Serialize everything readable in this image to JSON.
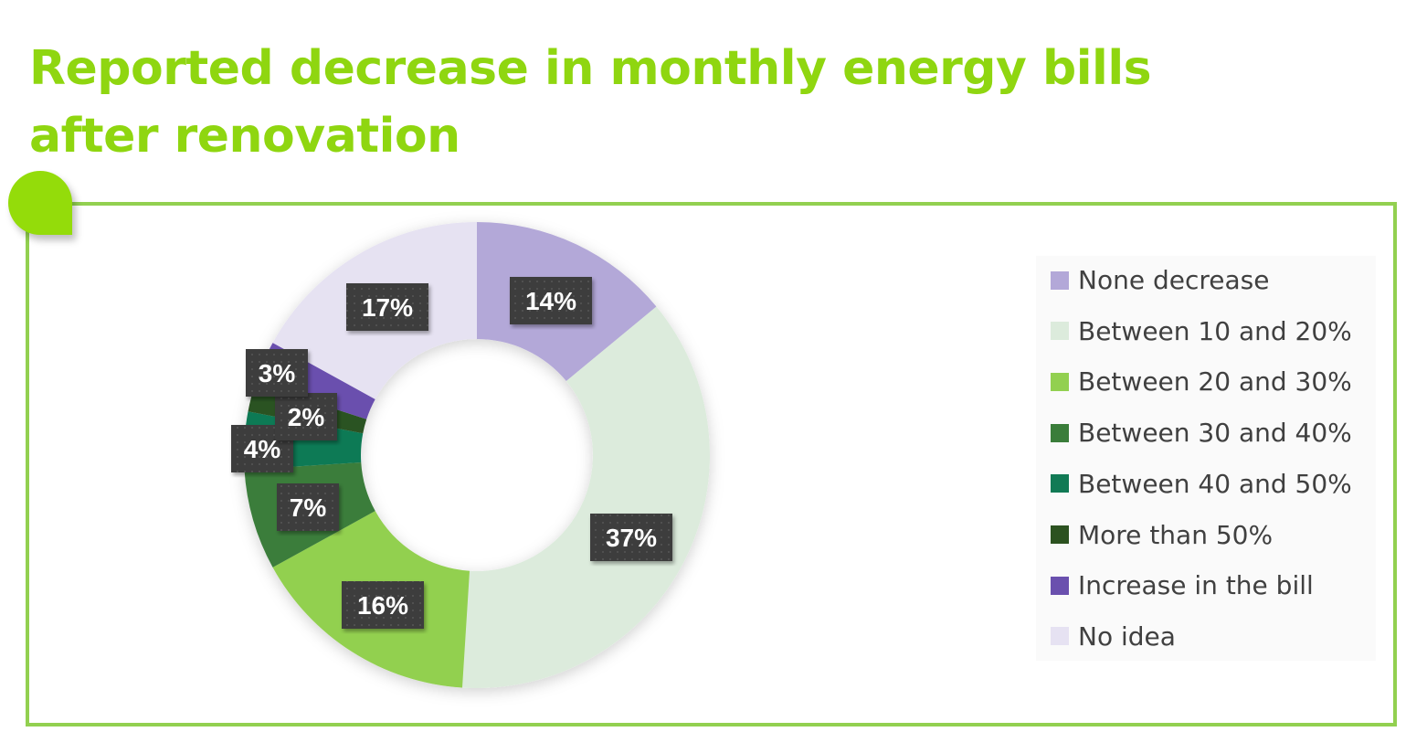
{
  "chart_data": {
    "type": "pie",
    "subtype": "donut",
    "title": "Reported decrease in monthly energy bills after renovation",
    "categories": [
      "None decrease",
      "Between 10 and 20%",
      "Between 20 and 30%",
      "Between 30 and 40%",
      "Between 40 and 50%",
      "More than 50%",
      "Increase in the bill",
      "No idea"
    ],
    "values": [
      14,
      37,
      16,
      7,
      4,
      2,
      3,
      17
    ],
    "data_labels": [
      "14%",
      "37%",
      "16%",
      "7%",
      "4%",
      "2%",
      "3%",
      "17%"
    ],
    "colors": [
      "#b3a8d8",
      "#dcebdc",
      "#92d050",
      "#3a7d3a",
      "#117a55",
      "#2c5220",
      "#6a50ae",
      "#e6e2f2"
    ],
    "legend_position": "right",
    "start_angle": "top",
    "direction": "clockwise"
  }
}
